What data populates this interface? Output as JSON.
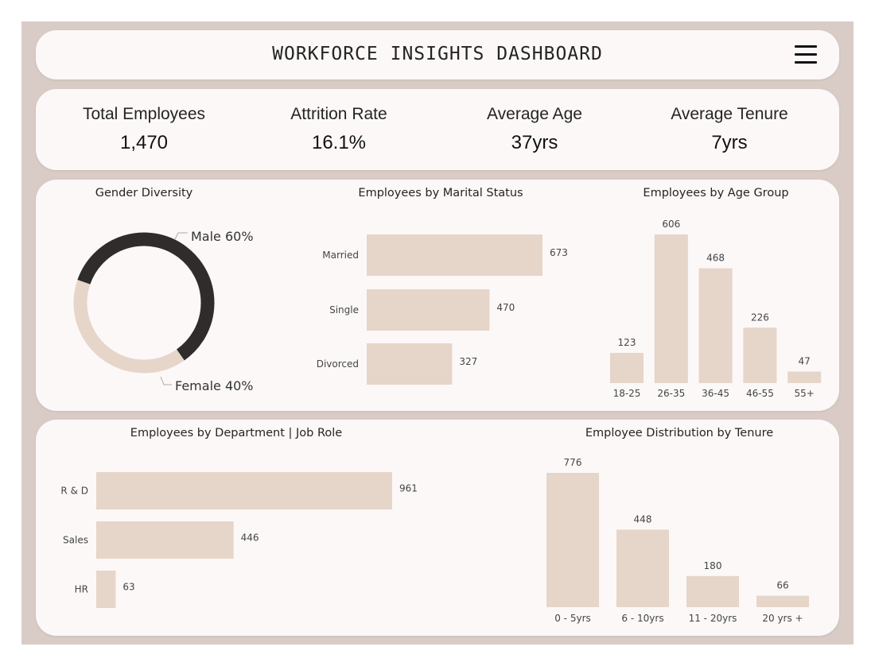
{
  "header": {
    "title": "WORKFORCE INSIGHTS DASHBOARD",
    "menu_icon": "hamburger-menu-icon"
  },
  "kpis": [
    {
      "label": "Total Employees",
      "value": "1,470"
    },
    {
      "label": "Attrition Rate",
      "value": "16.1%"
    },
    {
      "label": "Average Age",
      "value": "37yrs"
    },
    {
      "label": "Average Tenure",
      "value": "7yrs"
    }
  ],
  "colors": {
    "background": "#d9ccc6",
    "card": "#fcf8f8",
    "bar": "#e6d5c9",
    "male": "#302c2c",
    "female": "#e6d5c9"
  },
  "chart_data": [
    {
      "type": "pie",
      "title": "Gender Diversity",
      "categories": [
        "Male",
        "Female"
      ],
      "values": [
        60,
        40
      ],
      "labels": [
        "Male 60%",
        "Female 40%"
      ]
    },
    {
      "type": "bar",
      "orientation": "horizontal",
      "title": "Employees by Marital Status",
      "categories": [
        "Married",
        "Single",
        "Divorced"
      ],
      "values": [
        673,
        470,
        327
      ]
    },
    {
      "type": "bar",
      "orientation": "vertical",
      "title": "Employees by Age Group",
      "categories": [
        "18-25",
        "26-35",
        "36-45",
        "46-55",
        "55+"
      ],
      "values": [
        123,
        606,
        468,
        226,
        47
      ]
    },
    {
      "type": "bar",
      "orientation": "horizontal",
      "title": "Employees by Department | Job Role",
      "categories": [
        "R & D",
        "Sales",
        "HR"
      ],
      "values": [
        961,
        446,
        63
      ]
    },
    {
      "type": "bar",
      "orientation": "vertical",
      "title": "Employee Distribution by Tenure",
      "categories": [
        "0 - 5yrs",
        "6 - 10yrs",
        "11 - 20yrs",
        "20 yrs +"
      ],
      "values": [
        776,
        448,
        180,
        66
      ]
    }
  ]
}
